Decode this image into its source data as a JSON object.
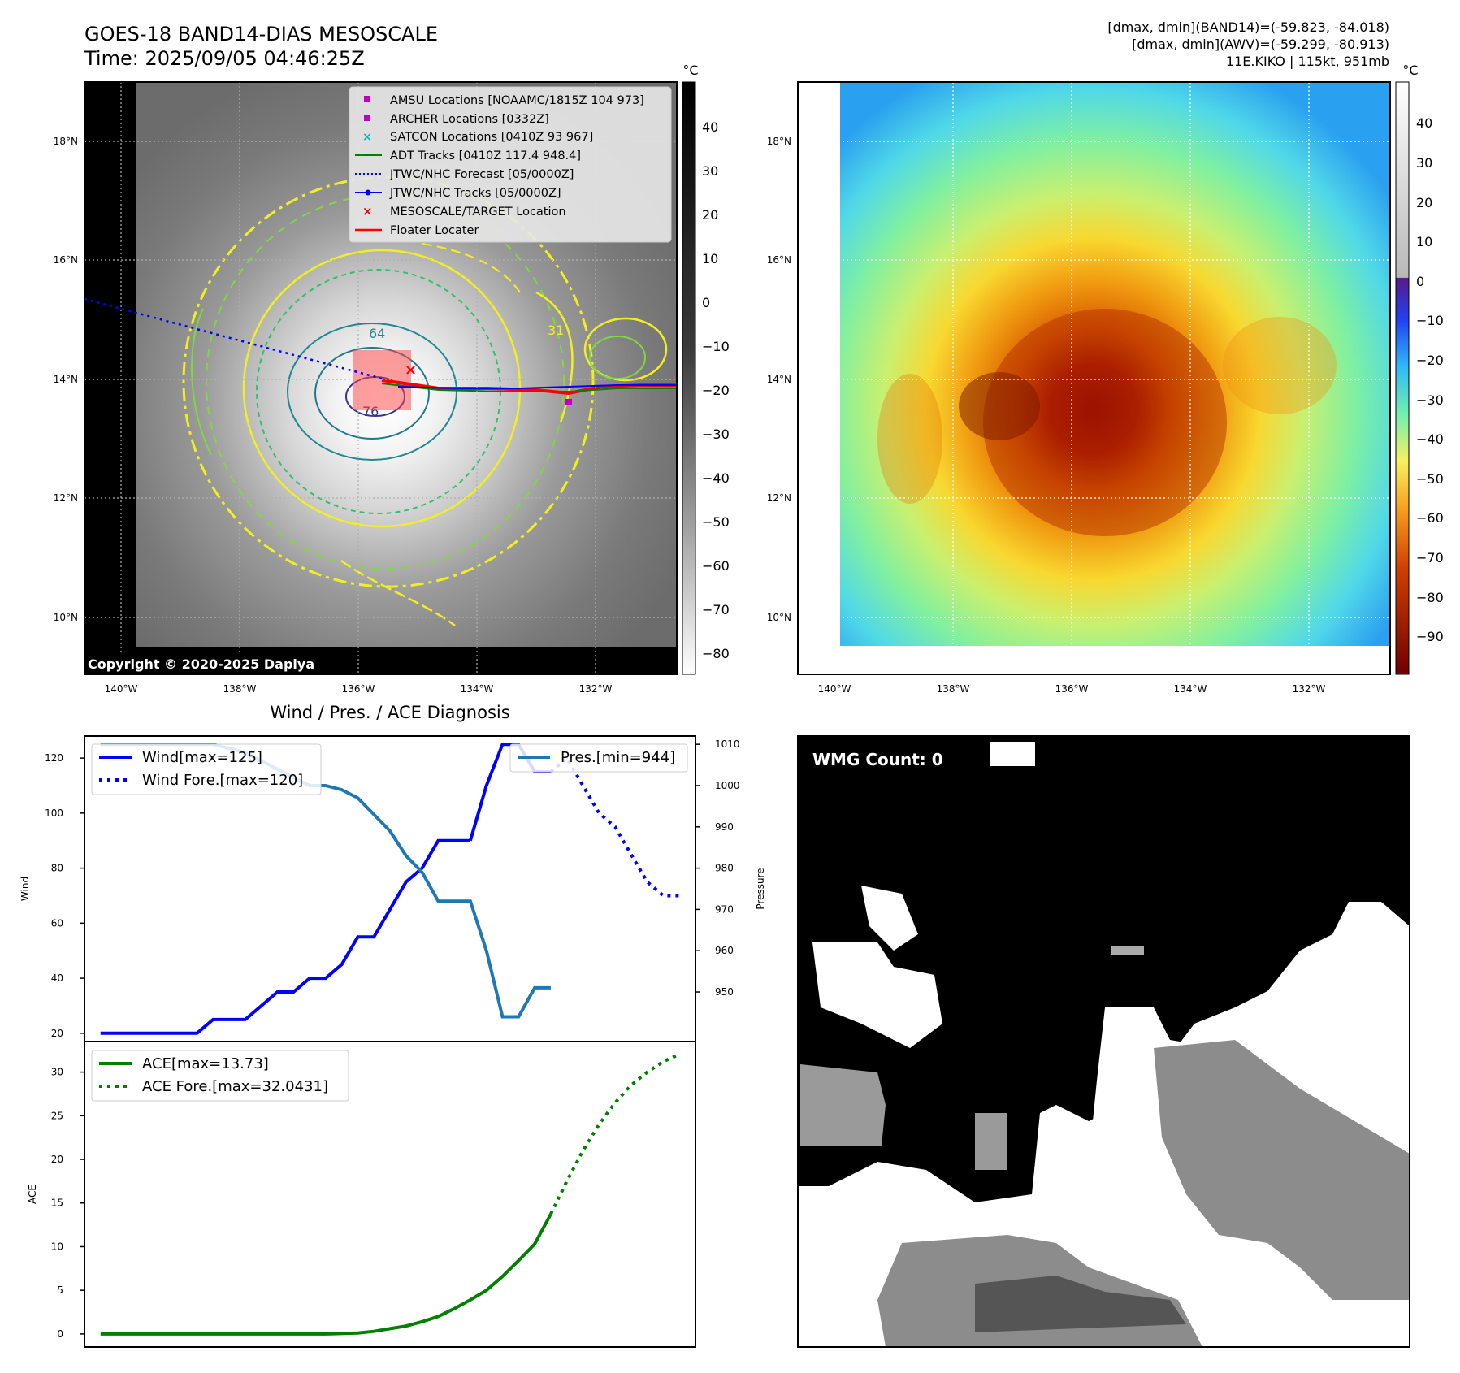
{
  "header": {
    "title": "GOES-18 BAND14-DIAS MESOSCALE",
    "time": "Time: 2025/09/05 04:46:25Z",
    "range_band14": "[dmax, dmin](BAND14)=(-59.823, -84.018)",
    "range_awv": "[dmax, dmin](AWV)=(-59.299, -80.913)",
    "storm": "11E.KIKO | 115kt, 951mb"
  },
  "map": {
    "lat_labels": [
      "18°N",
      "16°N",
      "14°N",
      "12°N",
      "10°N"
    ],
    "lon_labels": [
      "140°W",
      "138°W",
      "136°W",
      "134°W",
      "132°W"
    ],
    "copyright": "Copyright © 2020-2025 Dapiya",
    "contour_labels": [
      "64",
      "76",
      "31"
    ],
    "legend": [
      {
        "label": "AMSU Locations [NOAAMC/1815Z 104 973]",
        "color": "#c000c0"
      },
      {
        "label": "ARCHER Locations [0332Z]",
        "color": "#c000c0"
      },
      {
        "label": "SATCON Locations [0410Z 93 967]",
        "color": "#00b8c0"
      },
      {
        "label": "ADT Tracks [0410Z 117.4 948.4]",
        "color": "#008000"
      },
      {
        "label": "JTWC/NHC Forecast [05/0000Z]",
        "color": "#0000ff"
      },
      {
        "label": "JTWC/NHC Tracks [05/0000Z]",
        "color": "#0000ff"
      },
      {
        "label": "MESOSCALE/TARGET Location",
        "color": "#ff0000"
      },
      {
        "label": "Floater Locater",
        "color": "#ff0000"
      }
    ]
  },
  "colorbar_gray": {
    "unit": "°C",
    "ticks": [
      "40",
      "30",
      "20",
      "10",
      "0",
      "−10",
      "−20",
      "−30",
      "−40",
      "−50",
      "−60",
      "−70",
      "−80"
    ]
  },
  "colorbar_color": {
    "unit": "°C",
    "ticks": [
      "40",
      "30",
      "20",
      "10",
      "0",
      "−10",
      "−20",
      "−30",
      "−40",
      "−50",
      "−60",
      "−70",
      "−80",
      "−90"
    ]
  },
  "wmg": {
    "label": "WMG Count: 0"
  },
  "chart_data": [
    {
      "type": "line",
      "title": "Wind / Pres. / ACE Diagnosis",
      "xlabel": "",
      "ylabel": "Wind",
      "ylabel_right": "Pressure",
      "ylim": [
        17,
        128
      ],
      "ylim_right": [
        938,
        1012
      ],
      "xlim": [
        -1,
        37
      ],
      "yticks": [
        "120",
        "100",
        "80",
        "60",
        "40",
        "20"
      ],
      "yticks_right": [
        "1010",
        "1000",
        "990",
        "980",
        "970",
        "960",
        "950"
      ],
      "series": [
        {
          "name": "Wind[max=125]",
          "color": "#0000ff",
          "style": "solid",
          "x": [
            0,
            1,
            2,
            3,
            4,
            5,
            6,
            7,
            8,
            9,
            10,
            11,
            12,
            13,
            14,
            15,
            16,
            17,
            18,
            19,
            20,
            21,
            22,
            23
          ],
          "values": [
            20,
            20,
            20,
            20,
            20,
            20,
            20,
            25,
            25,
            25,
            30,
            35,
            35,
            40,
            40,
            45,
            55,
            55,
            65,
            75,
            80,
            90,
            90,
            90
          ]
        },
        {
          "name": "Wind[max=125]",
          "color": "#0000ff",
          "style": "solid",
          "x": [
            23,
            24,
            25,
            26,
            27,
            28
          ],
          "values": [
            90,
            110,
            125,
            125,
            115,
            115
          ]
        },
        {
          "name": "Wind Fore.[max=120]",
          "color": "#0000ff",
          "style": "dotted",
          "x": [
            28,
            29,
            30,
            31,
            32,
            33,
            34,
            35,
            36
          ],
          "values": [
            115,
            120,
            110,
            100,
            95,
            85,
            75,
            70,
            70
          ]
        },
        {
          "name": "Pres.[min=944]",
          "color": "#1f77b4",
          "style": "solid",
          "axis": "right",
          "x": [
            0,
            1,
            2,
            3,
            4,
            5,
            6,
            7,
            8,
            9,
            10,
            11,
            12,
            13,
            14,
            15,
            16,
            17,
            18,
            19,
            20,
            21,
            22,
            23,
            24,
            25,
            26,
            27,
            28
          ],
          "values": [
            1010,
            1010,
            1010,
            1010,
            1010,
            1010,
            1010,
            1010,
            1009,
            1008,
            1006,
            1004,
            1002,
            1000,
            1000,
            999,
            997,
            993,
            989,
            983,
            979,
            972,
            972,
            972,
            960,
            944,
            944,
            951,
            951
          ]
        }
      ],
      "legend": [
        "Wind[max=125]",
        "Wind Fore.[max=120]",
        "Pres.[min=944]"
      ]
    },
    {
      "type": "line",
      "ylabel": "ACE",
      "ylim": [
        -1.5,
        33.5
      ],
      "xlim": [
        -1,
        37
      ],
      "yticks": [
        "30",
        "25",
        "20",
        "15",
        "10",
        "5",
        "0"
      ],
      "series": [
        {
          "name": "ACE[max=13.73]",
          "color": "#008000",
          "style": "solid",
          "x": [
            0,
            4,
            8,
            10,
            12,
            14,
            16,
            17,
            18,
            19,
            20,
            21,
            22,
            23,
            24,
            25,
            26,
            27,
            28
          ],
          "values": [
            0,
            0,
            0,
            0,
            0,
            0,
            0.1,
            0.3,
            0.6,
            0.9,
            1.4,
            2.0,
            2.9,
            3.9,
            5.0,
            6.6,
            8.4,
            10.3,
            13.73
          ]
        },
        {
          "name": "ACE Fore.[max=32.0431]",
          "color": "#008000",
          "style": "dotted",
          "x": [
            28,
            29,
            30,
            31,
            32,
            33,
            34,
            35,
            36
          ],
          "values": [
            13.73,
            17.5,
            21.0,
            24.0,
            26.5,
            28.5,
            30.0,
            31.2,
            32.0431
          ]
        }
      ],
      "legend": [
        "ACE[max=13.73]",
        "ACE Fore.[max=32.0431]"
      ]
    }
  ]
}
